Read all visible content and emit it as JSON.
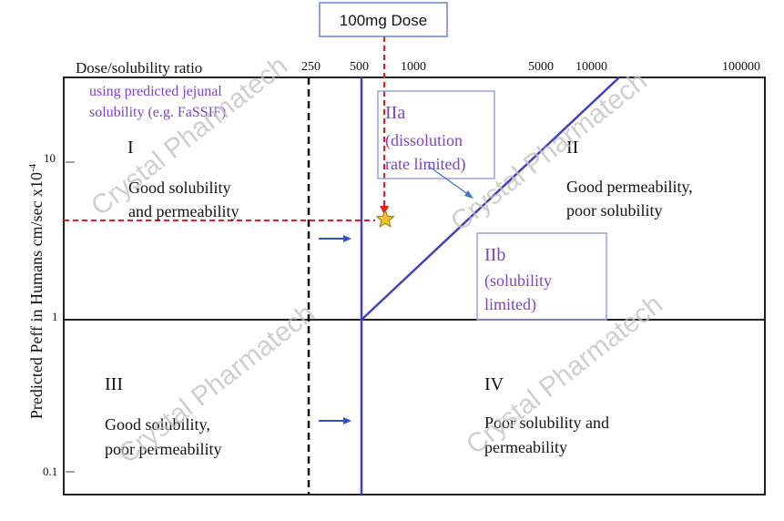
{
  "callout": {
    "label": "100mg Dose"
  },
  "top_axis": {
    "title": "Dose/solubility ratio",
    "ticks": [
      "250",
      "500",
      "1000",
      "5000",
      "10000",
      "100000"
    ]
  },
  "left_axis": {
    "title": "Predicted  Peff in Humans cm/sec x10",
    "title_superscript": "-4",
    "ticks": [
      "10",
      "1",
      "0.1"
    ]
  },
  "note": {
    "line1": "using predicted jejunal",
    "line2": "solubility (e.g. FaSSIF)"
  },
  "regions": {
    "I": {
      "numeral": "I",
      "line1": "Good solubility",
      "line2": "and permeability"
    },
    "II": {
      "numeral": "II",
      "line1": "Good permeability,",
      "line2": "poor solubility"
    },
    "IIa": {
      "numeral": "IIa",
      "line1": "(dissolution",
      "line2": "rate limited)"
    },
    "IIb": {
      "numeral": "IIb",
      "line1": "(solubility",
      "line2": "limited)"
    },
    "III": {
      "numeral": "III",
      "line1": "Good solubility,",
      "line2": "poor permeability"
    },
    "IV": {
      "numeral": "IV",
      "line1": "Poor solubility and",
      "line2": "permeability"
    }
  },
  "watermark": {
    "text": "Crystal Pharmatech"
  },
  "colors": {
    "blue_line": "#4040c0",
    "purple_text": "#7a44cc",
    "red_dash": "#e02020",
    "star": "#f4c430",
    "box_border": "#9aa4e0"
  }
}
